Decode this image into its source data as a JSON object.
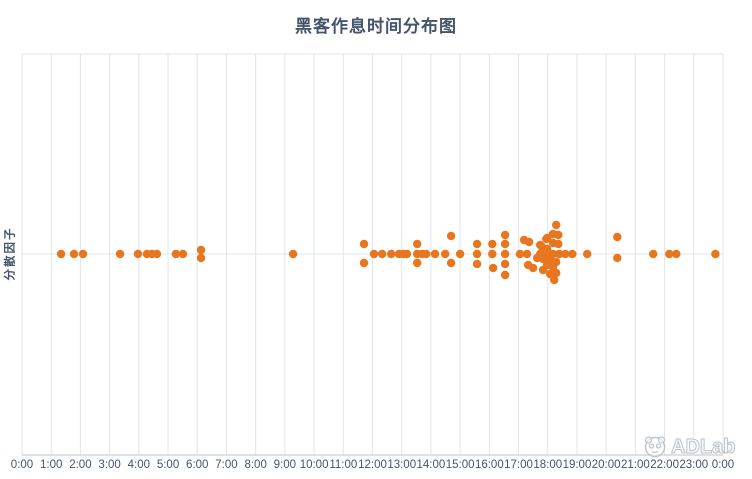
{
  "chart_data": {
    "type": "scatter",
    "title": "黑客作息时间分布图",
    "xlabel": "",
    "ylabel": "分散因子",
    "x_unit": "time-of-day",
    "x_range_hours": [
      0,
      24
    ],
    "x_ticks": [
      "0:00",
      "1:00",
      "2:00",
      "3:00",
      "4:00",
      "5:00",
      "6:00",
      "7:00",
      "8:00",
      "9:00",
      "10:00",
      "11:00",
      "12:00",
      "13:00",
      "14:00",
      "15:00",
      "16:00",
      "17:00",
      "18:00",
      "19:00",
      "20:00",
      "21:00",
      "22:00",
      "23:00",
      "0:00"
    ],
    "grid": "vertical hourly gridlines, one horizontal midline, boxed top/left, no legend",
    "legend": "none",
    "point_color": "#E8761F",
    "axis_color": "#C6CFD9",
    "gridline_color": "#DFE5EE",
    "points_format": "[hour_decimal, jitter_offset_px_from_midline]",
    "points": [
      [
        1.34,
        0
      ],
      [
        1.78,
        0
      ],
      [
        2.09,
        0
      ],
      [
        3.36,
        0
      ],
      [
        3.97,
        0
      ],
      [
        4.28,
        0
      ],
      [
        4.45,
        0
      ],
      [
        4.62,
        0
      ],
      [
        5.27,
        0
      ],
      [
        5.51,
        0
      ],
      [
        6.13,
        -4
      ],
      [
        6.13,
        4
      ],
      [
        9.28,
        0
      ],
      [
        11.71,
        -10
      ],
      [
        11.71,
        9
      ],
      [
        12.05,
        0
      ],
      [
        12.33,
        0
      ],
      [
        12.64,
        0
      ],
      [
        12.91,
        0
      ],
      [
        13.05,
        0
      ],
      [
        13.18,
        0
      ],
      [
        13.53,
        -10
      ],
      [
        13.53,
        0
      ],
      [
        13.53,
        9
      ],
      [
        13.7,
        0
      ],
      [
        13.84,
        0
      ],
      [
        14.14,
        0
      ],
      [
        14.49,
        0
      ],
      [
        14.69,
        -18
      ],
      [
        14.69,
        9
      ],
      [
        15.0,
        0
      ],
      [
        15.58,
        -10
      ],
      [
        15.58,
        0
      ],
      [
        15.58,
        10
      ],
      [
        16.1,
        -10
      ],
      [
        16.1,
        0
      ],
      [
        16.13,
        14
      ],
      [
        16.54,
        -19
      ],
      [
        16.54,
        -10
      ],
      [
        16.54,
        0
      ],
      [
        16.54,
        10
      ],
      [
        16.54,
        21
      ],
      [
        17.05,
        0
      ],
      [
        17.19,
        -14
      ],
      [
        17.36,
        -12
      ],
      [
        17.29,
        0
      ],
      [
        17.33,
        11
      ],
      [
        17.5,
        14
      ],
      [
        17.64,
        4
      ],
      [
        17.74,
        -9
      ],
      [
        17.74,
        0
      ],
      [
        17.81,
        -7
      ],
      [
        17.84,
        0
      ],
      [
        17.84,
        5
      ],
      [
        17.84,
        16
      ],
      [
        17.95,
        -15
      ],
      [
        17.98,
        -16
      ],
      [
        17.98,
        -5
      ],
      [
        17.98,
        0
      ],
      [
        17.98,
        11
      ],
      [
        18.08,
        6
      ],
      [
        18.08,
        20
      ],
      [
        18.18,
        -20
      ],
      [
        18.18,
        -11
      ],
      [
        18.18,
        0
      ],
      [
        18.18,
        13
      ],
      [
        18.22,
        26
      ],
      [
        18.29,
        -29
      ],
      [
        18.29,
        8
      ],
      [
        18.29,
        19
      ],
      [
        18.36,
        -19
      ],
      [
        18.36,
        -10
      ],
      [
        18.39,
        0
      ],
      [
        18.6,
        0
      ],
      [
        18.84,
        0
      ],
      [
        19.35,
        0
      ],
      [
        20.38,
        -17
      ],
      [
        20.38,
        4
      ],
      [
        21.61,
        0
      ],
      [
        22.16,
        0
      ],
      [
        22.4,
        0
      ],
      [
        23.74,
        0
      ]
    ]
  },
  "watermark": {
    "logo_text": "ADLab"
  }
}
